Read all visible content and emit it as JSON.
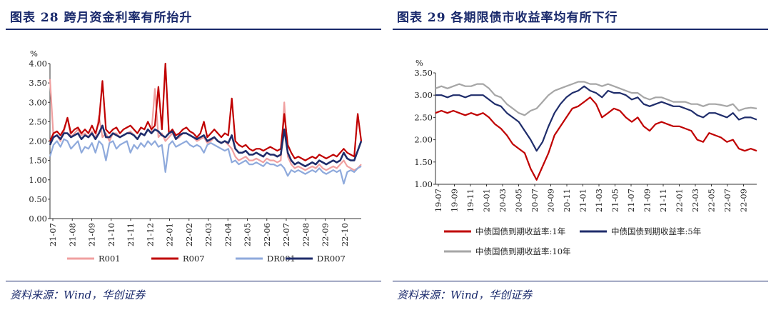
{
  "left": {
    "title": "图表 28 跨月资金利率有所抬升",
    "source": "资料来源：Wind，华创证券"
  },
  "right": {
    "title": "图表 29 各期限债市收益率均有所下行",
    "source": "资料来源：Wind，华创证券"
  },
  "chart_data": [
    {
      "type": "line",
      "ylabel": "%",
      "ylim": [
        0,
        4
      ],
      "yticks": [
        "0.00",
        "0.50",
        "1.00",
        "1.50",
        "2.00",
        "2.50",
        "3.00",
        "3.50",
        "4.00"
      ],
      "x_labels": [
        "21-07",
        "21-08",
        "21-09",
        "21-10",
        "21-11",
        "21-12",
        "22-01",
        "22-02",
        "22-03",
        "22-04",
        "22-05",
        "22-06",
        "22-07",
        "22-08",
        "22-09",
        "22-10"
      ],
      "legend_position": "bottom",
      "series": [
        {
          "name": "R001",
          "color": "#f0a0a0",
          "values": [
            3.6,
            2.1,
            2.15,
            2.0,
            2.25,
            2.6,
            2.1,
            2.2,
            2.3,
            2.15,
            2.2,
            2.1,
            2.25,
            2.05,
            2.65,
            2.1,
            2.2,
            2.0,
            2.2,
            2.2,
            2.1,
            2.15,
            2.2,
            2.25,
            2.15,
            2.05,
            2.2,
            2.15,
            2.3,
            2.2,
            3.35,
            2.1,
            2.2,
            2.0,
            2.1,
            2.2,
            2.05,
            2.1,
            2.2,
            2.2,
            2.15,
            2.1,
            2.0,
            2.05,
            2.1,
            1.95,
            2.0,
            2.1,
            2.0,
            1.95,
            2.0,
            1.9,
            1.8,
            1.6,
            1.5,
            1.55,
            1.6,
            1.5,
            1.5,
            1.55,
            1.5,
            1.45,
            1.55,
            1.5,
            1.5,
            1.45,
            1.5,
            3.0,
            1.6,
            1.4,
            1.3,
            1.35,
            1.3,
            1.25,
            1.3,
            1.35,
            1.3,
            1.4,
            1.3,
            1.25,
            1.3,
            1.35,
            1.3,
            1.4,
            1.5,
            1.35,
            1.3,
            1.25,
            1.3,
            1.4
          ]
        },
        {
          "name": "R007",
          "color": "#c00000",
          "values": [
            2.0,
            2.2,
            2.25,
            2.15,
            2.3,
            2.6,
            2.2,
            2.3,
            2.35,
            2.2,
            2.3,
            2.2,
            2.4,
            2.2,
            2.5,
            3.55,
            2.3,
            2.2,
            2.3,
            2.35,
            2.2,
            2.3,
            2.35,
            2.4,
            2.3,
            2.2,
            2.35,
            2.3,
            2.5,
            2.3,
            2.4,
            3.4,
            2.3,
            4.0,
            2.2,
            2.3,
            2.15,
            2.2,
            2.3,
            2.35,
            2.25,
            2.2,
            2.1,
            2.2,
            2.5,
            2.1,
            2.2,
            2.3,
            2.2,
            2.1,
            2.2,
            2.15,
            3.1,
            2.0,
            1.9,
            1.85,
            1.9,
            1.8,
            1.75,
            1.8,
            1.8,
            1.75,
            1.8,
            1.85,
            1.8,
            1.75,
            1.8,
            2.7,
            1.9,
            1.7,
            1.55,
            1.6,
            1.55,
            1.5,
            1.55,
            1.6,
            1.55,
            1.65,
            1.6,
            1.55,
            1.6,
            1.65,
            1.6,
            1.7,
            1.8,
            1.7,
            1.65,
            1.6,
            2.7,
            2.0
          ]
        },
        {
          "name": "DR001",
          "color": "#8faadc",
          "values": [
            1.6,
            1.9,
            2.0,
            1.85,
            2.05,
            2.0,
            1.8,
            1.9,
            2.0,
            1.7,
            1.85,
            1.8,
            1.95,
            1.7,
            2.0,
            1.9,
            1.5,
            1.95,
            2.0,
            1.8,
            1.9,
            1.95,
            2.0,
            1.7,
            1.9,
            1.8,
            1.95,
            1.85,
            2.0,
            1.9,
            2.0,
            1.85,
            1.9,
            1.2,
            1.9,
            2.0,
            1.85,
            1.9,
            1.95,
            2.0,
            1.9,
            1.85,
            1.9,
            1.85,
            1.7,
            1.9,
            1.95,
            1.9,
            1.85,
            1.8,
            1.75,
            1.8,
            1.45,
            1.5,
            1.4,
            1.45,
            1.5,
            1.4,
            1.4,
            1.45,
            1.4,
            1.35,
            1.45,
            1.4,
            1.4,
            1.35,
            1.4,
            1.3,
            1.1,
            1.25,
            1.2,
            1.25,
            1.2,
            1.15,
            1.2,
            1.25,
            1.2,
            1.3,
            1.2,
            1.15,
            1.2,
            1.25,
            1.2,
            1.25,
            0.9,
            1.2,
            1.25,
            1.2,
            1.3,
            1.35
          ]
        },
        {
          "name": "DR007",
          "color": "#1f2d6b",
          "values": [
            1.9,
            2.1,
            2.15,
            2.05,
            2.2,
            2.2,
            2.1,
            2.15,
            2.2,
            2.05,
            2.15,
            2.1,
            2.2,
            2.05,
            2.2,
            2.4,
            2.1,
            2.1,
            2.2,
            2.15,
            2.1,
            2.15,
            2.2,
            2.2,
            2.15,
            2.05,
            2.2,
            2.15,
            2.3,
            2.2,
            2.3,
            2.25,
            2.15,
            2.1,
            2.2,
            2.25,
            2.05,
            2.15,
            2.2,
            2.2,
            2.15,
            2.1,
            2.05,
            2.1,
            2.15,
            2.0,
            2.05,
            2.1,
            2.0,
            1.95,
            2.0,
            1.95,
            2.15,
            1.8,
            1.7,
            1.7,
            1.75,
            1.65,
            1.65,
            1.7,
            1.65,
            1.6,
            1.7,
            1.65,
            1.65,
            1.6,
            1.65,
            2.3,
            1.7,
            1.5,
            1.4,
            1.45,
            1.4,
            1.35,
            1.4,
            1.45,
            1.4,
            1.5,
            1.45,
            1.4,
            1.45,
            1.5,
            1.45,
            1.5,
            1.7,
            1.55,
            1.5,
            1.5,
            1.75,
            2.0
          ]
        }
      ]
    },
    {
      "type": "line",
      "ylabel": "%",
      "ylim": [
        1.0,
        3.5
      ],
      "yticks": [
        "1.00",
        "1.50",
        "2.00",
        "2.50",
        "3.00",
        "3.50"
      ],
      "x_labels": [
        "19-07",
        "19-09",
        "19-11",
        "20-01",
        "20-03",
        "20-05",
        "20-07",
        "20-09",
        "20-11",
        "21-01",
        "21-03",
        "21-05",
        "21-07",
        "21-09",
        "21-11",
        "22-01",
        "22-03",
        "22-05",
        "22-07",
        "22-09"
      ],
      "legend_position": "bottom",
      "series": [
        {
          "name": "中债国债到期收益率:1年",
          "color": "#c00000",
          "values": [
            2.6,
            2.65,
            2.6,
            2.65,
            2.6,
            2.55,
            2.6,
            2.55,
            2.6,
            2.5,
            2.35,
            2.25,
            2.1,
            1.9,
            1.8,
            1.7,
            1.35,
            1.1,
            1.4,
            1.7,
            2.1,
            2.3,
            2.5,
            2.7,
            2.75,
            2.85,
            2.95,
            2.8,
            2.5,
            2.6,
            2.7,
            2.65,
            2.5,
            2.4,
            2.5,
            2.3,
            2.2,
            2.35,
            2.4,
            2.35,
            2.3,
            2.3,
            2.25,
            2.2,
            2.0,
            1.95,
            2.15,
            2.1,
            2.05,
            1.95,
            2.0,
            1.8,
            1.75,
            1.8,
            1.75
          ]
        },
        {
          "name": "中债国债到期收益率:5年",
          "color": "#1f2d6b",
          "values": [
            3.0,
            3.0,
            2.95,
            3.0,
            3.0,
            2.95,
            3.0,
            3.0,
            3.0,
            2.9,
            2.8,
            2.75,
            2.6,
            2.5,
            2.4,
            2.2,
            2.0,
            1.75,
            1.95,
            2.3,
            2.6,
            2.8,
            2.95,
            3.05,
            3.1,
            3.2,
            3.1,
            3.05,
            2.95,
            3.1,
            3.05,
            3.05,
            3.0,
            2.9,
            2.95,
            2.8,
            2.75,
            2.8,
            2.85,
            2.8,
            2.75,
            2.75,
            2.7,
            2.65,
            2.55,
            2.5,
            2.6,
            2.6,
            2.55,
            2.5,
            2.6,
            2.45,
            2.5,
            2.5,
            2.45
          ]
        },
        {
          "name": "中债国债到期收益率:10年",
          "color": "#a6a6a6",
          "values": [
            3.15,
            3.2,
            3.15,
            3.2,
            3.25,
            3.2,
            3.2,
            3.25,
            3.25,
            3.15,
            3.0,
            2.95,
            2.8,
            2.7,
            2.6,
            2.55,
            2.65,
            2.7,
            2.85,
            3.0,
            3.1,
            3.15,
            3.2,
            3.25,
            3.3,
            3.3,
            3.25,
            3.25,
            3.2,
            3.25,
            3.2,
            3.15,
            3.1,
            3.05,
            3.05,
            2.95,
            2.9,
            2.95,
            2.95,
            2.9,
            2.85,
            2.85,
            2.85,
            2.8,
            2.8,
            2.75,
            2.8,
            2.8,
            2.78,
            2.75,
            2.8,
            2.65,
            2.7,
            2.72,
            2.7
          ]
        }
      ]
    }
  ]
}
